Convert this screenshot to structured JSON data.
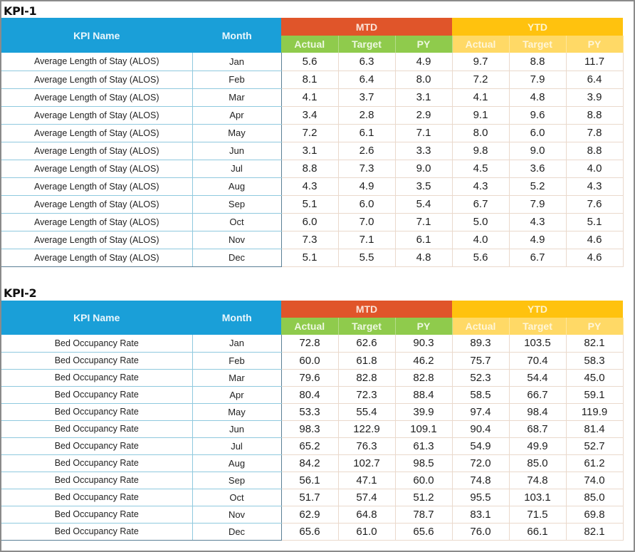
{
  "kpi1": {
    "title": "KPI-1",
    "headers": {
      "kpi_name": "KPI Name",
      "month": "Month",
      "mtd": "MTD",
      "ytd": "YTD",
      "sub": [
        "Actual",
        "Target",
        "PY",
        "Actual",
        "Target",
        "PY"
      ]
    },
    "rows": [
      {
        "name": "Average Length of Stay (ALOS)",
        "month": "Jan",
        "values": [
          "5.6",
          "6.3",
          "4.9",
          "9.7",
          "8.8",
          "11.7"
        ]
      },
      {
        "name": "Average Length of Stay (ALOS)",
        "month": "Feb",
        "values": [
          "8.1",
          "6.4",
          "8.0",
          "7.2",
          "7.9",
          "6.4"
        ]
      },
      {
        "name": "Average Length of Stay (ALOS)",
        "month": "Mar",
        "values": [
          "4.1",
          "3.7",
          "3.1",
          "4.1",
          "4.8",
          "3.9"
        ]
      },
      {
        "name": "Average Length of Stay (ALOS)",
        "month": "Apr",
        "values": [
          "3.4",
          "2.8",
          "2.9",
          "9.1",
          "9.6",
          "8.8"
        ]
      },
      {
        "name": "Average Length of Stay (ALOS)",
        "month": "May",
        "values": [
          "7.2",
          "6.1",
          "7.1",
          "8.0",
          "6.0",
          "7.8"
        ]
      },
      {
        "name": "Average Length of Stay (ALOS)",
        "month": "Jun",
        "values": [
          "3.1",
          "2.6",
          "3.3",
          "9.8",
          "9.0",
          "8.8"
        ]
      },
      {
        "name": "Average Length of Stay (ALOS)",
        "month": "Jul",
        "values": [
          "8.8",
          "7.3",
          "9.0",
          "4.5",
          "3.6",
          "4.0"
        ]
      },
      {
        "name": "Average Length of Stay (ALOS)",
        "month": "Aug",
        "values": [
          "4.3",
          "4.9",
          "3.5",
          "4.3",
          "5.2",
          "4.3"
        ]
      },
      {
        "name": "Average Length of Stay (ALOS)",
        "month": "Sep",
        "values": [
          "5.1",
          "6.0",
          "5.4",
          "6.7",
          "7.9",
          "7.6"
        ]
      },
      {
        "name": "Average Length of Stay (ALOS)",
        "month": "Oct",
        "values": [
          "6.0",
          "7.0",
          "7.1",
          "5.0",
          "4.3",
          "5.1"
        ]
      },
      {
        "name": "Average Length of Stay (ALOS)",
        "month": "Nov",
        "values": [
          "7.3",
          "7.1",
          "6.1",
          "4.0",
          "4.9",
          "4.6"
        ]
      },
      {
        "name": "Average Length of Stay (ALOS)",
        "month": "Dec",
        "values": [
          "5.1",
          "5.5",
          "4.8",
          "5.6",
          "6.7",
          "4.6"
        ]
      }
    ]
  },
  "kpi2": {
    "title": "KPI-2",
    "headers": {
      "kpi_name": "KPI Name",
      "month": "Month",
      "mtd": "MTD",
      "ytd": "YTD",
      "sub": [
        "Actual",
        "Target",
        "PY",
        "Actual",
        "Target",
        "PY"
      ]
    },
    "rows": [
      {
        "name": "Bed Occupancy Rate",
        "month": "Jan",
        "values": [
          "72.8",
          "62.6",
          "90.3",
          "89.3",
          "103.5",
          "82.1"
        ]
      },
      {
        "name": "Bed Occupancy Rate",
        "month": "Feb",
        "values": [
          "60.0",
          "61.8",
          "46.2",
          "75.7",
          "70.4",
          "58.3"
        ]
      },
      {
        "name": "Bed Occupancy Rate",
        "month": "Mar",
        "values": [
          "79.6",
          "82.8",
          "82.8",
          "52.3",
          "54.4",
          "45.0"
        ]
      },
      {
        "name": "Bed Occupancy Rate",
        "month": "Apr",
        "values": [
          "80.4",
          "72.3",
          "88.4",
          "58.5",
          "66.7",
          "59.1"
        ]
      },
      {
        "name": "Bed Occupancy Rate",
        "month": "May",
        "values": [
          "53.3",
          "55.4",
          "39.9",
          "97.4",
          "98.4",
          "119.9"
        ]
      },
      {
        "name": "Bed Occupancy Rate",
        "month": "Jun",
        "values": [
          "98.3",
          "122.9",
          "109.1",
          "90.4",
          "68.7",
          "81.4"
        ]
      },
      {
        "name": "Bed Occupancy Rate",
        "month": "Jul",
        "values": [
          "65.2",
          "76.3",
          "61.3",
          "54.9",
          "49.9",
          "52.7"
        ]
      },
      {
        "name": "Bed Occupancy Rate",
        "month": "Aug",
        "values": [
          "84.2",
          "102.7",
          "98.5",
          "72.0",
          "85.0",
          "61.2"
        ]
      },
      {
        "name": "Bed Occupancy Rate",
        "month": "Sep",
        "values": [
          "56.1",
          "47.1",
          "60.0",
          "74.8",
          "74.8",
          "74.0"
        ]
      },
      {
        "name": "Bed Occupancy Rate",
        "month": "Oct",
        "values": [
          "51.7",
          "57.4",
          "51.2",
          "95.5",
          "103.1",
          "85.0"
        ]
      },
      {
        "name": "Bed Occupancy Rate",
        "month": "Nov",
        "values": [
          "62.9",
          "64.8",
          "78.7",
          "83.1",
          "71.5",
          "69.8"
        ]
      },
      {
        "name": "Bed Occupancy Rate",
        "month": "Dec",
        "values": [
          "65.6",
          "61.0",
          "65.6",
          "76.0",
          "66.1",
          "82.1"
        ]
      }
    ]
  },
  "colors": {
    "header_blue": "#1a9fd8",
    "mtd_orange": "#e0552a",
    "ytd_gold": "#ffc20e",
    "mtd_sub_green": "#8fcb4c",
    "ytd_sub_yellow": "#ffd966"
  }
}
